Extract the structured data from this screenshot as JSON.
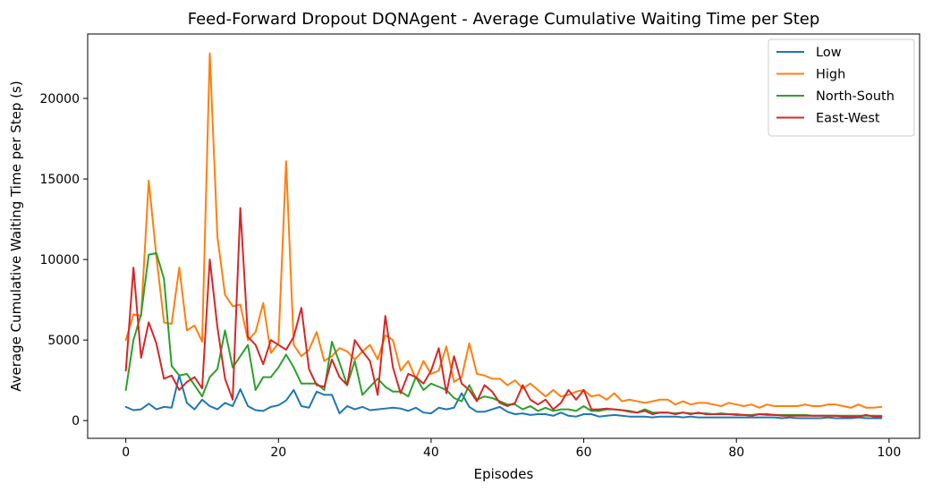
{
  "chart_data": {
    "type": "line",
    "title": "Feed-Forward Dropout DQNAgent - Average Cumulative Waiting Time per Step",
    "xlabel": "Episodes",
    "ylabel": "Average Cumulative Waiting Time per Step (s)",
    "xlim": [
      -5,
      104
    ],
    "ylim": [
      -1100,
      24000
    ],
    "xticks": [
      0,
      20,
      40,
      60,
      80,
      100
    ],
    "yticks": [
      0,
      5000,
      10000,
      15000,
      20000
    ],
    "grid": false,
    "legend_position": "top-right",
    "x": [
      0,
      1,
      2,
      3,
      4,
      5,
      6,
      7,
      8,
      9,
      10,
      11,
      12,
      13,
      14,
      15,
      16,
      17,
      18,
      19,
      20,
      21,
      22,
      23,
      24,
      25,
      26,
      27,
      28,
      29,
      30,
      31,
      32,
      33,
      34,
      35,
      36,
      37,
      38,
      39,
      40,
      41,
      42,
      43,
      44,
      45,
      46,
      47,
      48,
      49,
      50,
      51,
      52,
      53,
      54,
      55,
      56,
      57,
      58,
      59,
      60,
      61,
      62,
      63,
      64,
      65,
      66,
      67,
      68,
      69,
      70,
      71,
      72,
      73,
      74,
      75,
      76,
      77,
      78,
      79,
      80,
      81,
      82,
      83,
      84,
      85,
      86,
      87,
      88,
      89,
      90,
      91,
      92,
      93,
      94,
      95,
      96,
      97,
      98,
      99
    ],
    "series": [
      {
        "name": "Low",
        "color": "#1f77b4",
        "values": [
          850,
          650,
          700,
          1050,
          700,
          850,
          800,
          2800,
          1100,
          700,
          1300,
          900,
          700,
          1100,
          900,
          1950,
          900,
          650,
          600,
          850,
          950,
          1250,
          1900,
          900,
          800,
          1800,
          1600,
          1600,
          450,
          900,
          700,
          850,
          650,
          700,
          750,
          800,
          750,
          600,
          800,
          500,
          450,
          800,
          700,
          800,
          1700,
          850,
          550,
          550,
          700,
          850,
          550,
          400,
          450,
          350,
          400,
          400,
          300,
          500,
          300,
          250,
          400,
          400,
          250,
          300,
          350,
          300,
          250,
          250,
          250,
          200,
          250,
          250,
          250,
          200,
          250,
          200,
          200,
          200,
          200,
          200,
          200,
          200,
          200,
          200,
          200,
          200,
          150,
          200,
          150,
          150,
          150,
          150,
          200,
          150,
          150,
          150,
          200,
          150,
          150,
          150
        ]
      },
      {
        "name": "High",
        "color": "#ff7f0e",
        "values": [
          5000,
          6600,
          6500,
          14900,
          10200,
          6100,
          6000,
          9500,
          5600,
          5900,
          4900,
          22800,
          11400,
          7800,
          7100,
          7200,
          5000,
          5500,
          7300,
          4200,
          4800,
          16100,
          4700,
          4000,
          4400,
          5500,
          3700,
          4000,
          4500,
          4300,
          3800,
          4300,
          4700,
          3800,
          5300,
          5000,
          3100,
          3700,
          2600,
          3700,
          2900,
          3100,
          4600,
          2400,
          2700,
          4800,
          2900,
          2800,
          2600,
          2600,
          2200,
          2500,
          2000,
          2300,
          1900,
          1500,
          1900,
          1500,
          1600,
          1800,
          1900,
          1500,
          1600,
          1300,
          1700,
          1200,
          1300,
          1200,
          1100,
          1200,
          1300,
          1300,
          1000,
          1200,
          1000,
          1100,
          1100,
          1000,
          900,
          1100,
          1000,
          900,
          1000,
          800,
          1000,
          900,
          900,
          900,
          900,
          1000,
          900,
          900,
          1000,
          1000,
          900,
          800,
          1000,
          800,
          800,
          850
        ]
      },
      {
        "name": "North-South",
        "color": "#2ca02c",
        "values": [
          1900,
          5000,
          6600,
          10300,
          10400,
          8800,
          3400,
          2800,
          2900,
          2200,
          1500,
          2700,
          3200,
          5600,
          3300,
          4000,
          4700,
          1900,
          2700,
          2700,
          3300,
          4100,
          3300,
          2300,
          2300,
          2300,
          1900,
          4900,
          3600,
          2200,
          3700,
          1600,
          2100,
          2600,
          2100,
          1800,
          1800,
          1500,
          2700,
          1900,
          2300,
          2100,
          1900,
          1400,
          1200,
          2200,
          1300,
          1500,
          1400,
          1200,
          1000,
          1000,
          700,
          900,
          600,
          800,
          600,
          700,
          700,
          600,
          900,
          600,
          600,
          700,
          700,
          650,
          600,
          500,
          700,
          500,
          500,
          500,
          450,
          500,
          450,
          450,
          450,
          400,
          450,
          400,
          400,
          350,
          350,
          400,
          350,
          350,
          350,
          350,
          350,
          350,
          300,
          300,
          300,
          300,
          300,
          300,
          300,
          300,
          300,
          300
        ]
      },
      {
        "name": "East-West",
        "color": "#d62728",
        "values": [
          3100,
          9500,
          3900,
          6100,
          4800,
          2600,
          2800,
          1900,
          2400,
          2700,
          2000,
          10000,
          5800,
          2600,
          1300,
          13200,
          5200,
          4700,
          3500,
          5000,
          4700,
          4400,
          5200,
          7000,
          3200,
          2200,
          2100,
          3800,
          2700,
          2200,
          5000,
          4300,
          3700,
          1600,
          6500,
          3300,
          1700,
          2900,
          2700,
          2300,
          3100,
          4500,
          1700,
          4000,
          2300,
          1900,
          1200,
          2200,
          1800,
          1100,
          900,
          1100,
          2200,
          1300,
          1000,
          1300,
          700,
          1100,
          1900,
          1300,
          1900,
          700,
          700,
          750,
          700,
          650,
          550,
          500,
          600,
          400,
          500,
          500,
          400,
          500,
          400,
          500,
          400,
          400,
          400,
          400,
          350,
          350,
          300,
          400,
          400,
          350,
          300,
          300,
          300,
          300,
          300,
          300,
          300,
          300,
          250,
          250,
          250,
          350,
          250,
          250
        ]
      }
    ]
  }
}
